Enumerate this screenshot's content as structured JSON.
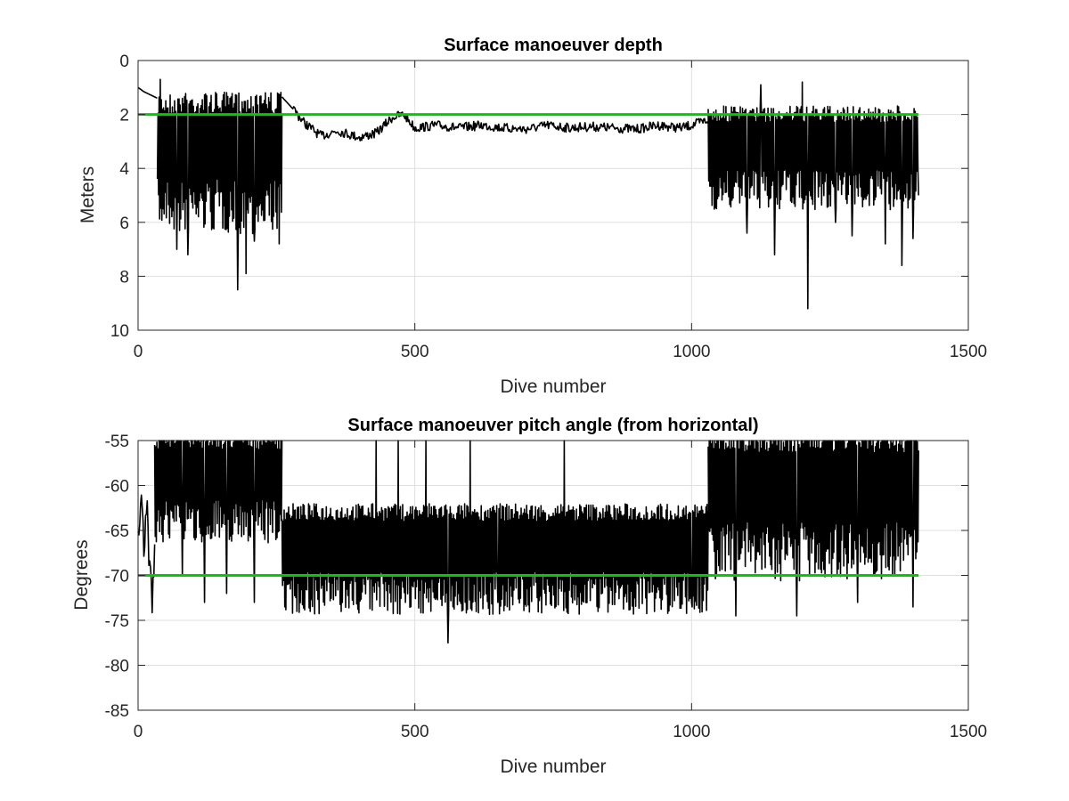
{
  "chart_data": [
    {
      "type": "line",
      "title": "Surface manoeuver depth",
      "xlabel": "Dive number",
      "ylabel": "Meters",
      "xlim": [
        0,
        1500
      ],
      "ylim": [
        0,
        10
      ],
      "y_reversed": true,
      "grid": true,
      "x_ticks": [
        0,
        500,
        1000,
        1500
      ],
      "x_tick_labels": [
        "0",
        "500",
        "1000",
        "1500"
      ],
      "y_ticks": [
        0,
        2,
        4,
        6,
        8,
        10
      ],
      "y_tick_labels": [
        "0",
        "2",
        "4",
        "6",
        "8",
        "10"
      ],
      "line_color": "#000000",
      "reference_color": "#00cc00",
      "series": [
        {
          "role": "data",
          "segments": [
            {
              "x_range": [
                0,
                35
              ],
              "pattern": "smooth",
              "points": [
                [
                  0,
                  1.0
                ],
                [
                  10,
                  1.15
                ],
                [
                  20,
                  1.25
                ],
                [
                  30,
                  1.35
                ],
                [
                  35,
                  1.4
                ]
              ]
            },
            {
              "x_range": [
                35,
                260
              ],
              "pattern": "oscillating",
              "top": 1.6,
              "bottom": 5.0,
              "extremes": [
                [
                  40,
                  0.7
                ],
                [
                  70,
                  7.0
                ],
                [
                  90,
                  7.2
                ],
                [
                  180,
                  8.5
                ],
                [
                  195,
                  7.9
                ],
                [
                  210,
                  6.7
                ],
                [
                  240,
                  1.2
                ],
                [
                  255,
                  6.8
                ]
              ]
            },
            {
              "x_range": [
                260,
                1030
              ],
              "pattern": "smooth",
              "points": [
                [
                  260,
                  1.35
                ],
                [
                  280,
                  1.8
                ],
                [
                  300,
                  2.3
                ],
                [
                  330,
                  2.8
                ],
                [
                  360,
                  2.6
                ],
                [
                  400,
                  2.85
                ],
                [
                  430,
                  2.7
                ],
                [
                  460,
                  2.1
                ],
                [
                  480,
                  2.0
                ],
                [
                  500,
                  2.5
                ],
                [
                  540,
                  2.4
                ],
                [
                  580,
                  2.5
                ],
                [
                  620,
                  2.4
                ],
                [
                  660,
                  2.5
                ],
                [
                  700,
                  2.55
                ],
                [
                  740,
                  2.4
                ],
                [
                  780,
                  2.5
                ],
                [
                  820,
                  2.45
                ],
                [
                  860,
                  2.5
                ],
                [
                  900,
                  2.55
                ],
                [
                  940,
                  2.4
                ],
                [
                  980,
                  2.5
                ],
                [
                  1000,
                  2.4
                ],
                [
                  1030,
                  2.2
                ]
              ]
            },
            {
              "x_range": [
                1030,
                1410
              ],
              "pattern": "oscillating",
              "top": 2.0,
              "bottom": 4.5,
              "extremes": [
                [
                  1100,
                  6.4
                ],
                [
                  1125,
                  0.9
                ],
                [
                  1150,
                  7.2
                ],
                [
                  1200,
                  0.8
                ],
                [
                  1210,
                  9.2
                ],
                [
                  1260,
                  6.0
                ],
                [
                  1290,
                  6.5
                ],
                [
                  1350,
                  6.8
                ],
                [
                  1380,
                  7.6
                ],
                [
                  1400,
                  6.6
                ],
                [
                  1410,
                  5.0
                ]
              ]
            }
          ]
        },
        {
          "role": "reference",
          "x": [
            0,
            1410
          ],
          "y": [
            2,
            2
          ]
        }
      ]
    },
    {
      "type": "line",
      "title": "Surface manoeuver pitch angle (from horizontal)",
      "xlabel": "Dive number",
      "ylabel": "Degrees",
      "xlim": [
        0,
        1500
      ],
      "ylim": [
        -85,
        -55
      ],
      "grid": true,
      "x_ticks": [
        0,
        500,
        1000,
        1500
      ],
      "x_tick_labels": [
        "0",
        "500",
        "1000",
        "1500"
      ],
      "y_ticks": [
        -85,
        -80,
        -75,
        -70,
        -65,
        -60,
        -55
      ],
      "y_tick_labels": [
        "-85",
        "-80",
        "-75",
        "-70",
        "-65",
        "-60",
        "-55"
      ],
      "line_color": "#000000",
      "reference_color": "#00cc00",
      "series": [
        {
          "role": "data",
          "segments": [
            {
              "x_range": [
                0,
                30
              ],
              "pattern": "smooth",
              "points": [
                [
                  0,
                  -65
                ],
                [
                  5,
                  -60
                ],
                [
                  10,
                  -67
                ],
                [
                  15,
                  -61
                ],
                [
                  20,
                  -70
                ],
                [
                  25,
                  -73
                ],
                [
                  30,
                  -69
                ]
              ]
            },
            {
              "x_range": [
                30,
                260
              ],
              "pattern": "oscillating",
              "top": -55,
              "bottom": -63,
              "extremes": [
                [
                  80,
                  -70
                ],
                [
                  120,
                  -73
                ],
                [
                  160,
                  -72
                ],
                [
                  210,
                  -73
                ]
              ]
            },
            {
              "x_range": [
                260,
                1030
              ],
              "pattern": "oscillating",
              "top": -63,
              "bottom": -71,
              "extremes": [
                [
                  430,
                  -55
                ],
                [
                  470,
                  -55
                ],
                [
                  520,
                  -55
                ],
                [
                  560,
                  -77.5
                ],
                [
                  600,
                  -55
                ],
                [
                  650,
                  -73
                ],
                [
                  770,
                  -55
                ],
                [
                  1000,
                  -73
                ]
              ]
            },
            {
              "x_range": [
                1030,
                1410
              ],
              "pattern": "oscillating",
              "top": -55,
              "bottom": -66,
              "extremes": [
                [
                  1080,
                  -74.5
                ],
                [
                  1190,
                  -74.5
                ],
                [
                  1300,
                  -73
                ],
                [
                  1400,
                  -73.5
                ]
              ]
            }
          ]
        },
        {
          "role": "reference",
          "x": [
            0,
            1410
          ],
          "y": [
            -70,
            -70
          ]
        }
      ]
    }
  ]
}
